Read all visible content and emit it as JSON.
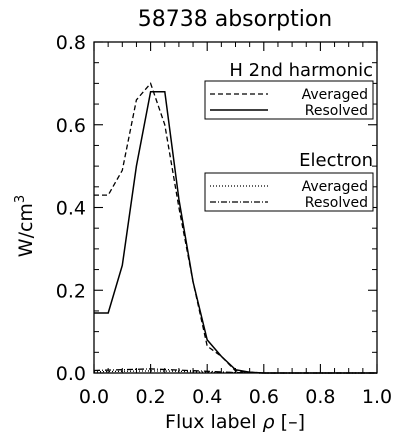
{
  "chart_data": {
    "type": "line",
    "title": "58738 absorption",
    "xlabel": "Flux label",
    "xlabel_symbol": "ρ",
    "xlabel_unit": "[–]",
    "ylabel": "W/cm",
    "ylabel_exponent": "3",
    "xlim": [
      0.0,
      1.0
    ],
    "ylim": [
      0.0,
      0.8
    ],
    "x_ticks": [
      "0.0",
      "0.2",
      "0.4",
      "0.6",
      "0.8",
      "1.0"
    ],
    "y_ticks": [
      "0.0",
      "0.2",
      "0.4",
      "0.6",
      "0.8"
    ],
    "grid": false,
    "legend_groups": [
      {
        "heading": "H 2nd harmonic",
        "entries": [
          {
            "label": "Averaged",
            "style": "dashed"
          },
          {
            "label": "Resolved",
            "style": "solid"
          }
        ]
      },
      {
        "heading": "Electron",
        "entries": [
          {
            "label": "Averaged",
            "style": "dotted"
          },
          {
            "label": "Resolved",
            "style": "dashdot"
          }
        ]
      }
    ],
    "series": [
      {
        "group": "H 2nd harmonic",
        "name": "Averaged",
        "style": "dashed",
        "x": [
          0.0,
          0.05,
          0.1,
          0.15,
          0.2,
          0.25,
          0.3,
          0.35,
          0.4,
          0.45,
          0.5,
          0.55,
          0.6,
          1.0
        ],
        "y": [
          0.43,
          0.43,
          0.49,
          0.66,
          0.7,
          0.6,
          0.4,
          0.22,
          0.065,
          0.04,
          0.005,
          0.002,
          0.0,
          0.0
        ]
      },
      {
        "group": "H 2nd harmonic",
        "name": "Resolved",
        "style": "solid",
        "x": [
          0.0,
          0.05,
          0.1,
          0.15,
          0.2,
          0.25,
          0.3,
          0.35,
          0.4,
          0.45,
          0.5,
          0.55,
          0.6,
          1.0
        ],
        "y": [
          0.145,
          0.145,
          0.26,
          0.5,
          0.68,
          0.68,
          0.42,
          0.22,
          0.08,
          0.04,
          0.008,
          0.002,
          0.0,
          0.0
        ]
      },
      {
        "group": "Electron",
        "name": "Averaged",
        "style": "dotted",
        "x": [
          0.0,
          0.1,
          0.2,
          0.3,
          0.4,
          0.5,
          0.6,
          1.0
        ],
        "y": [
          0.003,
          0.004,
          0.005,
          0.004,
          0.002,
          0.001,
          0.0,
          0.0
        ]
      },
      {
        "group": "Electron",
        "name": "Resolved",
        "style": "dashdot",
        "x": [
          0.0,
          0.1,
          0.2,
          0.3,
          0.4,
          0.5,
          0.6,
          1.0
        ],
        "y": [
          0.006,
          0.008,
          0.01,
          0.007,
          0.004,
          0.001,
          0.0,
          0.0
        ]
      }
    ]
  }
}
